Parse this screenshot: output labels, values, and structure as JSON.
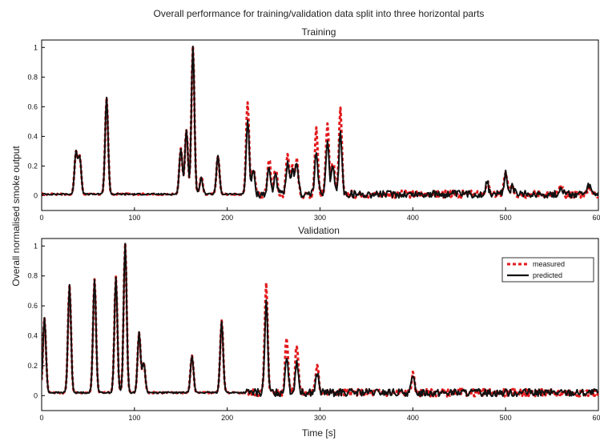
{
  "figure": {
    "title": "Overall performance for training/validation data split into three horizontal parts",
    "ylabel": "Overall normalised smoke output",
    "xlabel": "Time [s]"
  },
  "colors": {
    "measured": "#e31a1c",
    "predicted": "#111111",
    "axes": "#000000",
    "background": "#ffffff"
  },
  "chart_data": [
    {
      "type": "line",
      "title": "Training",
      "xlabel": "",
      "ylabel": "",
      "xlim": [
        0,
        600
      ],
      "ylim": [
        -0.1,
        1.05
      ],
      "x_ticks": [
        0,
        100,
        200,
        300,
        400,
        500,
        600
      ],
      "x_tick_labels": [
        "0",
        "100",
        "200",
        "300",
        "400",
        "500",
        "600"
      ],
      "y_ticks": [
        0,
        0.2,
        0.4,
        0.6,
        0.8,
        1
      ],
      "y_tick_labels": [
        "0",
        "0.2",
        "0.4",
        "0.6",
        "0.8",
        "1"
      ],
      "grid": false,
      "baseline": 0.01,
      "series": [
        {
          "name": "measured",
          "style": "dashed",
          "peaks": [
            [
              37,
              0.28
            ],
            [
              41,
              0.25
            ],
            [
              70,
              0.65
            ],
            [
              150,
              0.31
            ],
            [
              156,
              0.43
            ],
            [
              163,
              1.0
            ],
            [
              172,
              0.12
            ],
            [
              190,
              0.26
            ],
            [
              222,
              0.62
            ],
            [
              228,
              0.18
            ],
            [
              245,
              0.25
            ],
            [
              252,
              0.18
            ],
            [
              265,
              0.27
            ],
            [
              270,
              0.2
            ],
            [
              275,
              0.23
            ],
            [
              296,
              0.45
            ],
            [
              308,
              0.5
            ],
            [
              314,
              0.22
            ],
            [
              322,
              0.56
            ],
            [
              480,
              0.08
            ],
            [
              500,
              0.14
            ],
            [
              507,
              0.07
            ],
            [
              560,
              0.05
            ],
            [
              590,
              0.06
            ]
          ]
        },
        {
          "name": "predicted",
          "style": "solid",
          "peaks": [
            [
              37,
              0.28
            ],
            [
              41,
              0.25
            ],
            [
              70,
              0.65
            ],
            [
              150,
              0.31
            ],
            [
              156,
              0.43
            ],
            [
              163,
              1.0
            ],
            [
              172,
              0.11
            ],
            [
              190,
              0.26
            ],
            [
              222,
              0.5
            ],
            [
              228,
              0.16
            ],
            [
              245,
              0.18
            ],
            [
              252,
              0.14
            ],
            [
              265,
              0.2
            ],
            [
              270,
              0.16
            ],
            [
              275,
              0.22
            ],
            [
              296,
              0.3
            ],
            [
              308,
              0.35
            ],
            [
              314,
              0.2
            ],
            [
              322,
              0.42
            ],
            [
              480,
              0.08
            ],
            [
              500,
              0.14
            ],
            [
              507,
              0.07
            ],
            [
              560,
              0.05
            ],
            [
              590,
              0.06
            ]
          ]
        }
      ]
    },
    {
      "type": "line",
      "title": "Validation",
      "xlabel": "Time [s]",
      "ylabel": "",
      "xlim": [
        0,
        600
      ],
      "ylim": [
        -0.1,
        1.05
      ],
      "x_ticks": [
        0,
        100,
        200,
        300,
        400,
        500,
        600
      ],
      "x_tick_labels": [
        "0",
        "100",
        "200",
        "300",
        "400",
        "500",
        "600"
      ],
      "y_ticks": [
        0,
        0.2,
        0.4,
        0.6,
        0.8,
        1
      ],
      "y_tick_labels": [
        "0",
        "0.2",
        "0.4",
        "0.6",
        "0.8",
        "1"
      ],
      "grid": false,
      "baseline": 0.02,
      "legend": {
        "position": "top-right",
        "entries": [
          "measured",
          "predicted"
        ]
      },
      "series": [
        {
          "name": "measured",
          "style": "dashed",
          "peaks": [
            [
              3,
              0.5
            ],
            [
              30,
              0.72
            ],
            [
              57,
              0.76
            ],
            [
              80,
              0.77
            ],
            [
              90,
              1.0
            ],
            [
              105,
              0.4
            ],
            [
              110,
              0.2
            ],
            [
              162,
              0.25
            ],
            [
              194,
              0.48
            ],
            [
              242,
              0.72
            ],
            [
              264,
              0.38
            ],
            [
              275,
              0.33
            ],
            [
              297,
              0.2
            ],
            [
              400,
              0.12
            ]
          ]
        },
        {
          "name": "predicted",
          "style": "solid",
          "peaks": [
            [
              3,
              0.5
            ],
            [
              30,
              0.72
            ],
            [
              57,
              0.76
            ],
            [
              80,
              0.77
            ],
            [
              90,
              1.0
            ],
            [
              105,
              0.4
            ],
            [
              110,
              0.2
            ],
            [
              162,
              0.25
            ],
            [
              194,
              0.48
            ],
            [
              242,
              0.6
            ],
            [
              264,
              0.25
            ],
            [
              275,
              0.22
            ],
            [
              297,
              0.13
            ],
            [
              400,
              0.1
            ]
          ]
        }
      ]
    }
  ]
}
